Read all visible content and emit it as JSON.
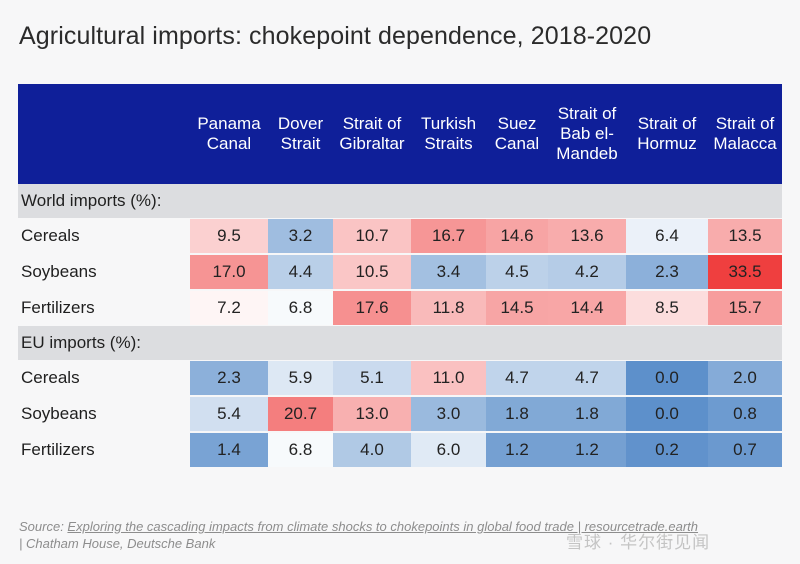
{
  "title": "Agricultural imports: chokepoint dependence, 2018-2020",
  "chart_data": {
    "type": "table",
    "title": "Agricultural imports: chokepoint dependence, 2018-2020",
    "columns": [
      "Panama\nCanal",
      "Dover\nStrait",
      "Strait of\nGibraltar",
      "Turkish\nStraits",
      "Suez\nCanal",
      "Strait of\nBab el-\nMandeb",
      "Strait of\nHormuz",
      "Strait of\nMalacca"
    ],
    "sections": [
      {
        "label": "World imports (%):",
        "rows": [
          {
            "label": "Cereals",
            "values": [
              9.5,
              3.2,
              10.7,
              16.7,
              14.6,
              13.6,
              6.4,
              13.5
            ]
          },
          {
            "label": "Soybeans",
            "values": [
              17.0,
              4.4,
              10.5,
              3.4,
              4.5,
              4.2,
              2.3,
              33.5
            ]
          },
          {
            "label": "Fertilizers",
            "values": [
              7.2,
              6.8,
              17.6,
              11.8,
              14.5,
              14.4,
              8.5,
              15.7
            ]
          }
        ]
      },
      {
        "label": "EU imports (%):",
        "rows": [
          {
            "label": "Cereals",
            "values": [
              2.3,
              5.9,
              5.1,
              11.0,
              4.7,
              4.7,
              0.0,
              2.0
            ]
          },
          {
            "label": "Soybeans",
            "values": [
              5.4,
              20.7,
              13.0,
              3.0,
              1.8,
              1.8,
              0.0,
              0.8
            ]
          },
          {
            "label": "Fertilizers",
            "values": [
              1.4,
              6.8,
              4.0,
              6.0,
              1.2,
              1.2,
              0.2,
              0.7
            ]
          }
        ]
      }
    ],
    "color_scale": {
      "low": "#4f86c6",
      "mid": "#ffffff",
      "high": "#ef3f3f",
      "mid_value": 7,
      "high_value": 33.5
    }
  },
  "source": {
    "prefix": "Source: ",
    "link_text": "Exploring the cascading impacts from climate shocks to chokepoints in global food trade | resourcetrade.earth",
    "suffix": " | Chatham House, Deutsche Bank"
  },
  "watermark": "雪球 · 华尔街见闻",
  "colors": {
    "header_bg": "#0f1f99",
    "section_bg": "#dcdde0",
    "page_bg": "#f7f7f8"
  }
}
